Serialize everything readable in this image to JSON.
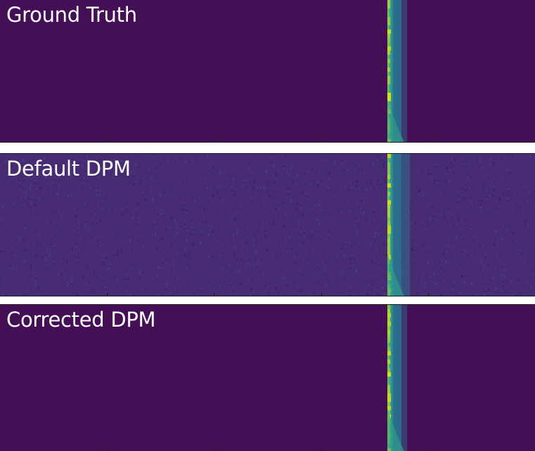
{
  "colors": {
    "background": "#440f55",
    "noise_background": "#472c74",
    "line_core": "#d8e219",
    "line_mid": "#2fa48b",
    "line_edge": "#2c6f8e"
  },
  "panels": [
    {
      "label": "Ground Truth",
      "noisy": false
    },
    {
      "label": "Default DPM",
      "noisy": true
    },
    {
      "label": "Corrected DPM",
      "noisy": false
    }
  ]
}
